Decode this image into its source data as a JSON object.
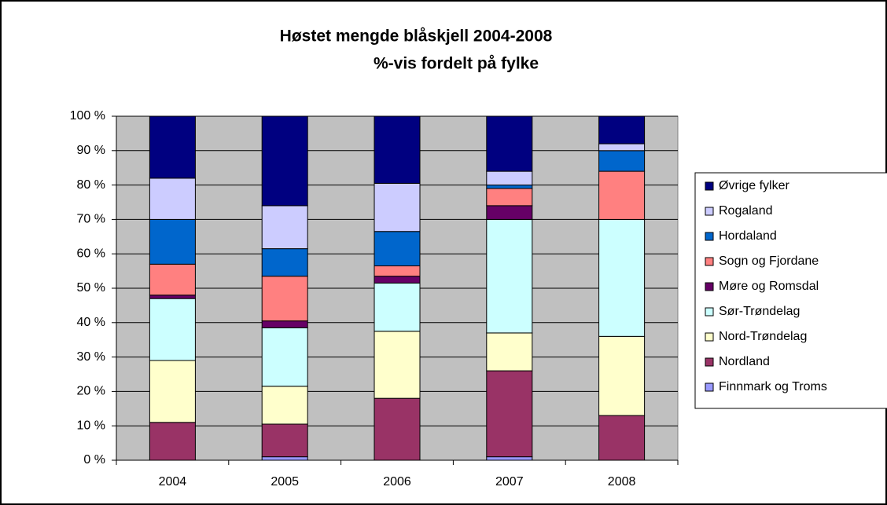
{
  "chart_data": {
    "type": "stacked_bar",
    "title": "Høstet mengde blåskjell 2004-2008",
    "subtitle": "%-vis fordelt på fylke",
    "categories": [
      "2004",
      "2005",
      "2006",
      "2007",
      "2008"
    ],
    "series": [
      {
        "name": "Finnmark og Troms",
        "color": "#9999ff",
        "values": [
          0,
          1,
          0,
          1,
          0
        ]
      },
      {
        "name": "Nordland",
        "color": "#993366",
        "values": [
          11,
          9.5,
          18,
          25,
          13
        ]
      },
      {
        "name": "Nord-Trøndelag",
        "color": "#ffffcc",
        "values": [
          18,
          11,
          19.5,
          11,
          23
        ]
      },
      {
        "name": "Sør-Trøndelag",
        "color": "#ccffff",
        "values": [
          18,
          17,
          14,
          33,
          34
        ]
      },
      {
        "name": "Møre og Romsdal",
        "color": "#660066",
        "values": [
          1,
          2,
          2,
          4,
          0
        ]
      },
      {
        "name": "Sogn og Fjordane",
        "color": "#ff8080",
        "values": [
          9,
          13,
          3,
          5,
          14
        ]
      },
      {
        "name": "Hordaland",
        "color": "#0066cc",
        "values": [
          13,
          8,
          10,
          1,
          6
        ]
      },
      {
        "name": "Rogaland",
        "color": "#ccccff",
        "values": [
          12,
          12.5,
          14,
          4,
          2
        ]
      },
      {
        "name": "Øvrige fylker",
        "color": "#000080",
        "values": [
          18,
          26,
          19.5,
          16,
          8
        ]
      }
    ],
    "ylim": [
      0,
      100
    ],
    "yticks": [
      {
        "value": 0,
        "label": "0 %"
      },
      {
        "value": 10,
        "label": "10 %"
      },
      {
        "value": 20,
        "label": "20 %"
      },
      {
        "value": 30,
        "label": "30 %"
      },
      {
        "value": 40,
        "label": "40 %"
      },
      {
        "value": 50,
        "label": "50 %"
      },
      {
        "value": 60,
        "label": "60 %"
      },
      {
        "value": 70,
        "label": "70 %"
      },
      {
        "value": 80,
        "label": "80 %"
      },
      {
        "value": 90,
        "label": "90 %"
      },
      {
        "value": 100,
        "label": "100 %"
      }
    ],
    "grid": true,
    "legend": "right"
  }
}
